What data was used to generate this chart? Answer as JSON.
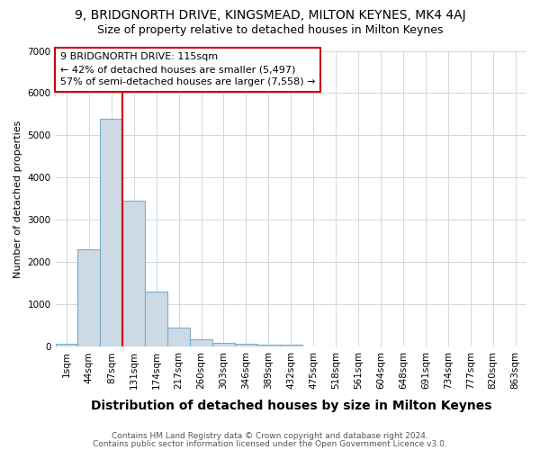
{
  "title1": "9, BRIDGNORTH DRIVE, KINGSMEAD, MILTON KEYNES, MK4 4AJ",
  "title2": "Size of property relative to detached houses in Milton Keynes",
  "xlabel": "Distribution of detached houses by size in Milton Keynes",
  "ylabel": "Number of detached properties",
  "footnote1": "Contains HM Land Registry data © Crown copyright and database right 2024.",
  "footnote2": "Contains public sector information licensed under the Open Government Licence v3.0.",
  "bar_labels": [
    "1sqm",
    "44sqm",
    "87sqm",
    "131sqm",
    "174sqm",
    "217sqm",
    "260sqm",
    "303sqm",
    "346sqm",
    "389sqm",
    "432sqm",
    "475sqm",
    "518sqm",
    "561sqm",
    "604sqm",
    "648sqm",
    "691sqm",
    "734sqm",
    "777sqm",
    "820sqm",
    "863sqm"
  ],
  "bar_values": [
    75,
    2300,
    5400,
    3450,
    1300,
    450,
    175,
    100,
    75,
    50,
    50,
    0,
    0,
    0,
    0,
    0,
    0,
    0,
    0,
    0,
    0
  ],
  "bar_color": "#cdd9e5",
  "bar_edge_color": "#7aaec8",
  "grid_color": "#d0d8e0",
  "background_color": "#ffffff",
  "vline_color": "#cc0000",
  "vline_position": 2.5,
  "annotation_box_color": "#ffffff",
  "annotation_border_color": "#cc0000",
  "annotation_text_line1": "9 BRIDGNORTH DRIVE: 115sqm",
  "annotation_text_line2": "← 42% of detached houses are smaller (5,497)",
  "annotation_text_line3": "57% of semi-detached houses are larger (7,558) →",
  "ylim": [
    0,
    7000
  ],
  "yticks": [
    0,
    1000,
    2000,
    3000,
    4000,
    5000,
    6000,
    7000
  ],
  "title1_fontsize": 10,
  "title2_fontsize": 9,
  "xlabel_fontsize": 10,
  "ylabel_fontsize": 8,
  "tick_fontsize": 7.5,
  "annotation_fontsize": 8,
  "footnote_fontsize": 6.5
}
